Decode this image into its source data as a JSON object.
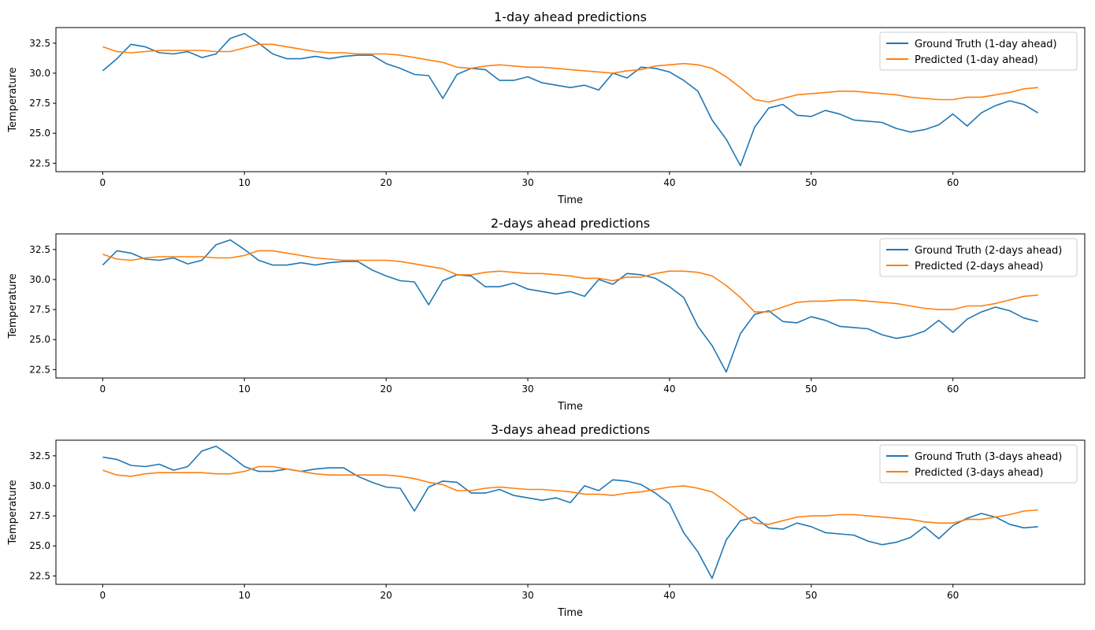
{
  "chart_data": [
    {
      "type": "line",
      "title": "1-day ahead predictions",
      "xlabel": "Time",
      "ylabel": "Temperature",
      "xlim": [
        -3.3,
        69.3
      ],
      "ylim": [
        21.8,
        33.8
      ],
      "xticks": [
        0,
        10,
        20,
        30,
        40,
        50,
        60
      ],
      "yticks": [
        22.5,
        25.0,
        27.5,
        30.0,
        32.5
      ],
      "xtick_labels": [
        "0",
        "10",
        "20",
        "30",
        "40",
        "50",
        "60"
      ],
      "ytick_labels": [
        "22.5",
        "25.0",
        "27.5",
        "30.0",
        "32.5"
      ],
      "legend": "top-right",
      "grid": false,
      "x": [
        0,
        1,
        2,
        3,
        4,
        5,
        6,
        7,
        8,
        9,
        10,
        11,
        12,
        13,
        14,
        15,
        16,
        17,
        18,
        19,
        20,
        21,
        22,
        23,
        24,
        25,
        26,
        27,
        28,
        29,
        30,
        31,
        32,
        33,
        34,
        35,
        36,
        37,
        38,
        39,
        40,
        41,
        42,
        43,
        44,
        45,
        46,
        47,
        48,
        49,
        50,
        51,
        52,
        53,
        54,
        55,
        56,
        57,
        58,
        59,
        60,
        61,
        62,
        63,
        64,
        65,
        66
      ],
      "series": [
        {
          "name": "Ground Truth (1-day ahead)",
          "color": "#1f77b4",
          "values": [
            30.2,
            31.2,
            32.4,
            32.2,
            31.7,
            31.6,
            31.8,
            31.3,
            31.6,
            32.9,
            33.3,
            32.5,
            31.6,
            31.2,
            31.2,
            31.4,
            31.2,
            31.4,
            31.5,
            31.5,
            30.8,
            30.4,
            29.9,
            29.8,
            27.9,
            29.9,
            30.4,
            30.3,
            29.4,
            29.4,
            29.7,
            29.2,
            29.0,
            28.8,
            29.0,
            28.6,
            30.0,
            29.6,
            30.5,
            30.4,
            30.1,
            29.4,
            28.5,
            26.1,
            24.5,
            22.3,
            25.5,
            27.1,
            27.4,
            26.5,
            26.4,
            26.9,
            26.6,
            26.1,
            26.0,
            25.9,
            25.4,
            25.1,
            25.3,
            25.7,
            26.6,
            25.6,
            26.7,
            27.3,
            27.7,
            27.4,
            26.7
          ]
        },
        {
          "name": "Predicted (1-day ahead)",
          "color": "#ff7f0e",
          "values": [
            32.2,
            31.8,
            31.7,
            31.8,
            31.9,
            31.9,
            31.9,
            31.9,
            31.8,
            31.8,
            32.1,
            32.4,
            32.4,
            32.2,
            32.0,
            31.8,
            31.7,
            31.7,
            31.6,
            31.6,
            31.6,
            31.5,
            31.3,
            31.1,
            30.9,
            30.5,
            30.4,
            30.6,
            30.7,
            30.6,
            30.5,
            30.5,
            30.4,
            30.3,
            30.2,
            30.1,
            30.0,
            30.2,
            30.3,
            30.6,
            30.7,
            30.8,
            30.7,
            30.4,
            29.7,
            28.8,
            27.8,
            27.6,
            27.9,
            28.2,
            28.3,
            28.4,
            28.5,
            28.5,
            28.4,
            28.3,
            28.2,
            28.0,
            27.9,
            27.8,
            27.8,
            28.0,
            28.0,
            28.2,
            28.4,
            28.7,
            28.8
          ]
        }
      ]
    },
    {
      "type": "line",
      "title": "2-days ahead predictions",
      "xlabel": "Time",
      "ylabel": "Temperature",
      "xlim": [
        -3.3,
        69.3
      ],
      "ylim": [
        21.8,
        33.8
      ],
      "xticks": [
        0,
        10,
        20,
        30,
        40,
        50,
        60
      ],
      "yticks": [
        22.5,
        25.0,
        27.5,
        30.0,
        32.5
      ],
      "xtick_labels": [
        "0",
        "10",
        "20",
        "30",
        "40",
        "50",
        "60"
      ],
      "ytick_labels": [
        "22.5",
        "25.0",
        "27.5",
        "30.0",
        "32.5"
      ],
      "legend": "top-right",
      "grid": false,
      "x": [
        0,
        1,
        2,
        3,
        4,
        5,
        6,
        7,
        8,
        9,
        10,
        11,
        12,
        13,
        14,
        15,
        16,
        17,
        18,
        19,
        20,
        21,
        22,
        23,
        24,
        25,
        26,
        27,
        28,
        29,
        30,
        31,
        32,
        33,
        34,
        35,
        36,
        37,
        38,
        39,
        40,
        41,
        42,
        43,
        44,
        45,
        46,
        47,
        48,
        49,
        50,
        51,
        52,
        53,
        54,
        55,
        56,
        57,
        58,
        59,
        60,
        61,
        62,
        63,
        64,
        65,
        66
      ],
      "series": [
        {
          "name": "Ground Truth (2-days ahead)",
          "color": "#1f77b4",
          "values": [
            31.2,
            32.4,
            32.2,
            31.7,
            31.6,
            31.8,
            31.3,
            31.6,
            32.9,
            33.3,
            32.5,
            31.6,
            31.2,
            31.2,
            31.4,
            31.2,
            31.4,
            31.5,
            31.5,
            30.8,
            30.3,
            29.9,
            29.8,
            27.9,
            29.9,
            30.4,
            30.3,
            29.4,
            29.4,
            29.7,
            29.2,
            29.0,
            28.8,
            29.0,
            28.6,
            30.0,
            29.6,
            30.5,
            30.4,
            30.1,
            29.4,
            28.5,
            26.1,
            24.5,
            22.3,
            25.5,
            27.1,
            27.4,
            26.5,
            26.4,
            26.9,
            26.6,
            26.1,
            26.0,
            25.9,
            25.4,
            25.1,
            25.3,
            25.7,
            26.6,
            25.6,
            26.7,
            27.3,
            27.7,
            27.4,
            26.8,
            26.5
          ]
        },
        {
          "name": "Predicted (2-days ahead)",
          "color": "#ff7f0e",
          "values": [
            32.1,
            31.7,
            31.6,
            31.8,
            31.9,
            31.9,
            31.9,
            31.9,
            31.8,
            31.8,
            32.0,
            32.4,
            32.4,
            32.2,
            32.0,
            31.8,
            31.7,
            31.6,
            31.6,
            31.6,
            31.6,
            31.5,
            31.3,
            31.1,
            30.9,
            30.4,
            30.4,
            30.6,
            30.7,
            30.6,
            30.5,
            30.5,
            30.4,
            30.3,
            30.1,
            30.1,
            29.9,
            30.2,
            30.2,
            30.5,
            30.7,
            30.7,
            30.6,
            30.3,
            29.5,
            28.5,
            27.3,
            27.3,
            27.7,
            28.1,
            28.2,
            28.2,
            28.3,
            28.3,
            28.2,
            28.1,
            28.0,
            27.8,
            27.6,
            27.5,
            27.5,
            27.8,
            27.8,
            28.0,
            28.3,
            28.6,
            28.7
          ]
        }
      ]
    },
    {
      "type": "line",
      "title": "3-days ahead predictions",
      "xlabel": "Time",
      "ylabel": "Temperature",
      "xlim": [
        -3.3,
        69.3
      ],
      "ylim": [
        21.8,
        33.8
      ],
      "xticks": [
        0,
        10,
        20,
        30,
        40,
        50,
        60
      ],
      "yticks": [
        22.5,
        25.0,
        27.5,
        30.0,
        32.5
      ],
      "xtick_labels": [
        "0",
        "10",
        "20",
        "30",
        "40",
        "50",
        "60"
      ],
      "ytick_labels": [
        "22.5",
        "25.0",
        "27.5",
        "30.0",
        "32.5"
      ],
      "legend": "top-right",
      "grid": false,
      "x": [
        0,
        1,
        2,
        3,
        4,
        5,
        6,
        7,
        8,
        9,
        10,
        11,
        12,
        13,
        14,
        15,
        16,
        17,
        18,
        19,
        20,
        21,
        22,
        23,
        24,
        25,
        26,
        27,
        28,
        29,
        30,
        31,
        32,
        33,
        34,
        35,
        36,
        37,
        38,
        39,
        40,
        41,
        42,
        43,
        44,
        45,
        46,
        47,
        48,
        49,
        50,
        51,
        52,
        53,
        54,
        55,
        56,
        57,
        58,
        59,
        60,
        61,
        62,
        63,
        64,
        65,
        66
      ],
      "series": [
        {
          "name": "Ground Truth (3-days ahead)",
          "color": "#1f77b4",
          "values": [
            32.4,
            32.2,
            31.7,
            31.6,
            31.8,
            31.3,
            31.6,
            32.9,
            33.3,
            32.5,
            31.6,
            31.2,
            31.2,
            31.4,
            31.2,
            31.4,
            31.5,
            31.5,
            30.8,
            30.3,
            29.9,
            29.8,
            27.9,
            29.9,
            30.4,
            30.3,
            29.4,
            29.4,
            29.7,
            29.2,
            29.0,
            28.8,
            29.0,
            28.6,
            30.0,
            29.6,
            30.5,
            30.4,
            30.1,
            29.4,
            28.5,
            26.1,
            24.5,
            22.3,
            25.5,
            27.1,
            27.4,
            26.5,
            26.4,
            26.9,
            26.6,
            26.1,
            26.0,
            25.9,
            25.4,
            25.1,
            25.3,
            25.7,
            26.6,
            25.6,
            26.7,
            27.3,
            27.7,
            27.4,
            26.8,
            26.5,
            26.6
          ]
        },
        {
          "name": "Predicted (3-days ahead)",
          "color": "#ff7f0e",
          "values": [
            31.3,
            30.9,
            30.8,
            31.0,
            31.1,
            31.1,
            31.1,
            31.1,
            31.0,
            31.0,
            31.2,
            31.6,
            31.6,
            31.4,
            31.2,
            31.0,
            30.9,
            30.9,
            30.9,
            30.9,
            30.9,
            30.8,
            30.6,
            30.3,
            30.1,
            29.6,
            29.6,
            29.8,
            29.9,
            29.8,
            29.7,
            29.7,
            29.6,
            29.5,
            29.3,
            29.3,
            29.2,
            29.4,
            29.5,
            29.7,
            29.9,
            30.0,
            29.8,
            29.5,
            28.7,
            27.8,
            26.9,
            26.8,
            27.1,
            27.4,
            27.5,
            27.5,
            27.6,
            27.6,
            27.5,
            27.4,
            27.3,
            27.2,
            27.0,
            26.9,
            26.9,
            27.2,
            27.2,
            27.4,
            27.6,
            27.9,
            28.0
          ]
        }
      ]
    }
  ]
}
